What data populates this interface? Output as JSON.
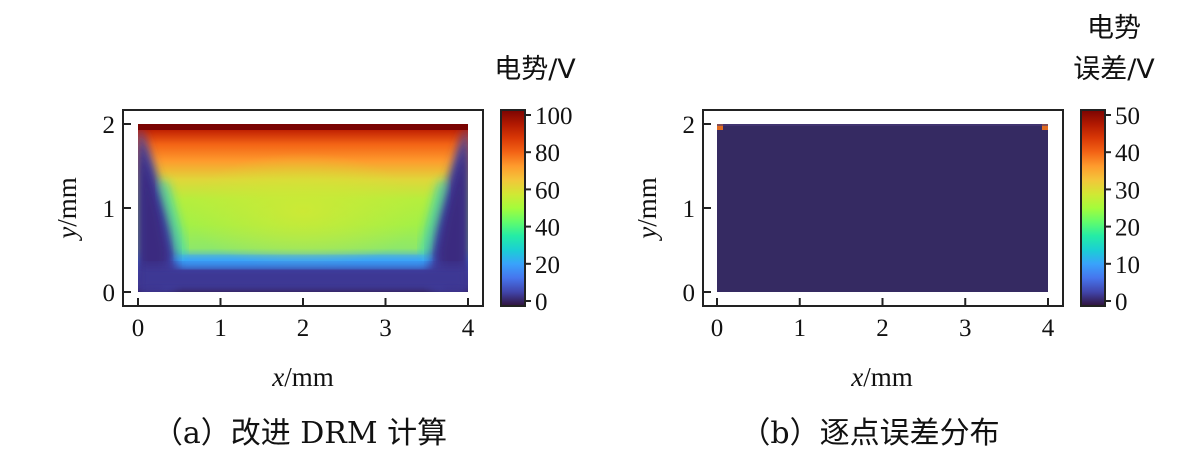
{
  "chart_data": [
    {
      "type": "heatmap",
      "caption": "（a）改进 DRM 计算",
      "xlabel_var": "x",
      "xlabel_unit": "/mm",
      "ylabel_var": "y",
      "ylabel_unit": "/mm",
      "xlim": [
        0,
        4
      ],
      "ylim": [
        0,
        2
      ],
      "x_ticks": [
        "0",
        "1",
        "2",
        "3",
        "4"
      ],
      "y_ticks": [
        "0",
        "1",
        "2"
      ],
      "colorbar_title": [
        "电势/V"
      ],
      "colorbar_range": [
        0,
        100
      ],
      "colorbar_ticks": [
        "0",
        "20",
        "40",
        "60",
        "80",
        "100"
      ],
      "field": "potential: 100 V along top edge (y=2), falling to about 0 V at the sides and bottom; interior plateau around 55-60 V",
      "colormap": [
        "#30123b",
        "#4145ab",
        "#4675ed",
        "#39a2fc",
        "#1bcfd4",
        "#24eca6",
        "#61fc6c",
        "#a4fc3b",
        "#d1e834",
        "#f3c63a",
        "#fe9b2d",
        "#f36315",
        "#d93806",
        "#b11901",
        "#7a0402"
      ]
    },
    {
      "type": "heatmap",
      "caption": "（b）逐点误差分布",
      "xlabel_var": "x",
      "xlabel_unit": "/mm",
      "ylabel_var": "y",
      "ylabel_unit": "/mm",
      "xlim": [
        0,
        4
      ],
      "ylim": [
        0,
        2
      ],
      "x_ticks": [
        "0",
        "1",
        "2",
        "3",
        "4"
      ],
      "y_ticks": [
        "0",
        "1",
        "2"
      ],
      "colorbar_title": [
        "电势",
        "误差/V"
      ],
      "colorbar_range": [
        0,
        50
      ],
      "colorbar_ticks": [
        "0",
        "10",
        "20",
        "30",
        "40",
        "50"
      ],
      "field": "pointwise error about 0 V everywhere, small spikes at the two top corners"
    }
  ]
}
